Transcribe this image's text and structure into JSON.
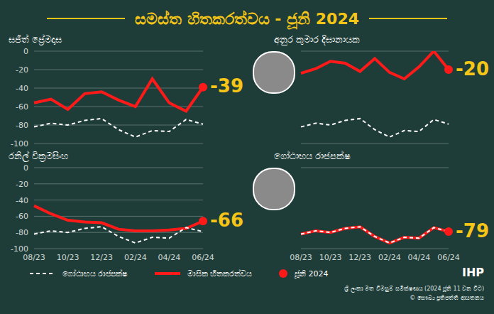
{
  "title": "සමස්ත හිතකරත්වය - ජූනි 2024",
  "legend": "bottom",
  "logo": "IHP",
  "source": [
    "ශ්‍රී ලංකා මත විමසුම් සමීක්ෂණය (2024 ජූනි 11 වන විට)",
    "© සෞඛ්‍ය ප්‍රතිපත්ති ආයතනය"
  ],
  "chart_data": [
    {
      "type": "line",
      "title": "සජිත් ප්‍රේමදාස",
      "categories": [
        "08/23",
        null,
        "10/23",
        null,
        "12/23",
        null,
        "02/24",
        null,
        "04/24",
        null,
        "06/24"
      ],
      "ylim": [
        -100,
        0
      ],
      "yticks": [
        -100,
        -80,
        -60,
        -40,
        -20,
        0
      ],
      "grid": true,
      "tick_labels": "y",
      "annotation": "-39",
      "series": [
        {
          "name": "ගෝඨාභය රාජපක්ෂ",
          "color": "#ffffff",
          "line_style": "dashed",
          "values": [
            -82,
            -78,
            -80,
            -75,
            -73,
            -85,
            -93,
            -86,
            -87,
            -74,
            -79
          ]
        },
        {
          "name": "මාසික හිතකරත්වය",
          "color": "#ff1a1a",
          "line_style": "solid",
          "values": [
            -56,
            -52,
            -63,
            -46,
            -44,
            -53,
            -60,
            -30,
            -56,
            -65,
            -39
          ]
        },
        {
          "name": "ජූනි 2024",
          "color": "#ff1a1a",
          "marker": "circle",
          "values": [
            null,
            null,
            null,
            null,
            null,
            null,
            null,
            null,
            null,
            null,
            -39
          ]
        }
      ]
    },
    {
      "type": "line",
      "title": "අනුර කුමාර දිසානායක",
      "categories": [
        "08/23",
        null,
        "10/23",
        null,
        "12/23",
        null,
        "02/24",
        null,
        "04/24",
        null,
        "06/24"
      ],
      "ylim": [
        -100,
        0
      ],
      "yticks": [
        -100,
        -80,
        -60,
        -40,
        -20,
        0
      ],
      "grid": true,
      "tick_labels": false,
      "annotation": "-20",
      "series": [
        {
          "name": "ගෝඨාභය රාජපක්ෂ",
          "color": "#ffffff",
          "line_style": "dashed",
          "values": [
            -82,
            -78,
            -80,
            -75,
            -73,
            -85,
            -93,
            -86,
            -87,
            -74,
            -79
          ]
        },
        {
          "name": "මාසික හිතකරත්වය",
          "color": "#ff1a1a",
          "line_style": "solid",
          "values": [
            -24,
            -19,
            -11,
            -13,
            -22,
            -8,
            -23,
            -30,
            -17,
            0,
            -20
          ]
        },
        {
          "name": "ජූනි 2024",
          "color": "#ff1a1a",
          "marker": "circle",
          "values": [
            null,
            null,
            null,
            null,
            null,
            null,
            null,
            null,
            null,
            null,
            -20
          ]
        }
      ]
    },
    {
      "type": "line",
      "title": "රනිල් වික්‍රමසිංහ",
      "categories": [
        "08/23",
        null,
        "10/23",
        null,
        "12/23",
        null,
        "02/24",
        null,
        "04/24",
        null,
        "06/24"
      ],
      "ylim": [
        -100,
        0
      ],
      "yticks": [
        -100,
        -80,
        -60,
        -40,
        -20,
        0
      ],
      "grid": true,
      "tick_labels": true,
      "annotation": "-66",
      "series": [
        {
          "name": "ගෝඨාභය රාජපක්ෂ",
          "color": "#ffffff",
          "line_style": "dashed",
          "values": [
            -82,
            -78,
            -80,
            -75,
            -73,
            -85,
            -93,
            -86,
            -87,
            -74,
            -79
          ]
        },
        {
          "name": "මාසික හිතකරත්වය",
          "color": "#ff1a1a",
          "line_style": "solid",
          "values": [
            -47,
            -57,
            -65,
            -67,
            -68,
            -76,
            -78,
            -78,
            -77,
            -75,
            -66
          ]
        },
        {
          "name": "ජූනි 2024",
          "color": "#ff1a1a",
          "marker": "circle",
          "values": [
            null,
            null,
            null,
            null,
            null,
            null,
            null,
            null,
            null,
            null,
            -66
          ]
        }
      ]
    },
    {
      "type": "line",
      "title": "ගෝඨාභය රාජපක්ෂ",
      "categories": [
        "08/23",
        null,
        "10/23",
        null,
        "12/23",
        null,
        "02/24",
        null,
        "04/24",
        null,
        "06/24"
      ],
      "ylim": [
        -100,
        0
      ],
      "yticks": [
        -100,
        -80,
        -60,
        -40,
        -20,
        0
      ],
      "grid": true,
      "tick_labels": "x",
      "annotation": "-79",
      "series": [
        {
          "name": "ගෝඨාභය රාජපක්ෂ",
          "color": "#ffffff",
          "line_style": "dashed",
          "values": [
            -82,
            -78,
            -80,
            -75,
            -73,
            -85,
            -93,
            -86,
            -87,
            -74,
            -79
          ]
        },
        {
          "name": "මාසික හිතකරත්වය",
          "color": "#ff1a1a",
          "line_style": "solid",
          "values": [
            -82,
            -78,
            -80,
            -75,
            -73,
            -85,
            -93,
            -86,
            -87,
            -74,
            -79
          ]
        },
        {
          "name": "ජූනි 2024",
          "color": "#ff1a1a",
          "marker": "circle",
          "values": [
            null,
            null,
            null,
            null,
            null,
            null,
            null,
            null,
            null,
            null,
            -79
          ]
        }
      ]
    }
  ]
}
